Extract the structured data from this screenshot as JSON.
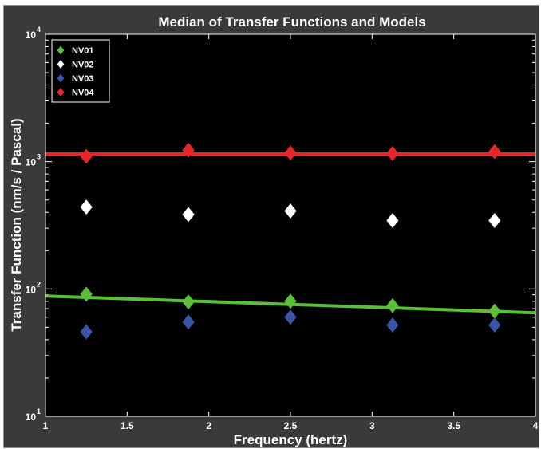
{
  "chart_data": {
    "type": "scatter",
    "title": "Median of Transfer Functions and Models",
    "xlabel": "Frequency (hertz)",
    "ylabel": "Transfer Function (nm/s / Pascal)",
    "xlim": [
      1,
      4
    ],
    "ylim": [
      10,
      10000
    ],
    "yscale": "log",
    "x_ticks": [
      "1",
      "1.5",
      "2",
      "2.5",
      "3",
      "3.5",
      "4"
    ],
    "y_ticks": [
      {
        "base": "10",
        "exp": "1"
      },
      {
        "base": "10",
        "exp": "2"
      },
      {
        "base": "10",
        "exp": "3"
      },
      {
        "base": "10",
        "exp": "4"
      }
    ],
    "legend_position": "top-left",
    "x": [
      1.25,
      1.875,
      2.5,
      3.125,
      3.75
    ],
    "series": [
      {
        "name": "NV01",
        "color": "#5cbf3a",
        "values": [
          91,
          79,
          80,
          74,
          67
        ]
      },
      {
        "name": "NV02",
        "color": "#ffffff",
        "values": [
          440,
          385,
          410,
          345,
          345
        ]
      },
      {
        "name": "NV03",
        "color": "#3a55a8",
        "values": [
          46,
          55,
          60,
          52,
          52
        ]
      },
      {
        "name": "NV04",
        "color": "#e8262a",
        "values": [
          1100,
          1230,
          1170,
          1160,
          1200
        ]
      }
    ],
    "model_lines": [
      {
        "color": "#5cbf3a",
        "x": [
          1,
          4
        ],
        "y": [
          88,
          65
        ]
      },
      {
        "color": "#e8262a",
        "x": [
          1,
          4
        ],
        "y": [
          1150,
          1150
        ]
      }
    ]
  }
}
